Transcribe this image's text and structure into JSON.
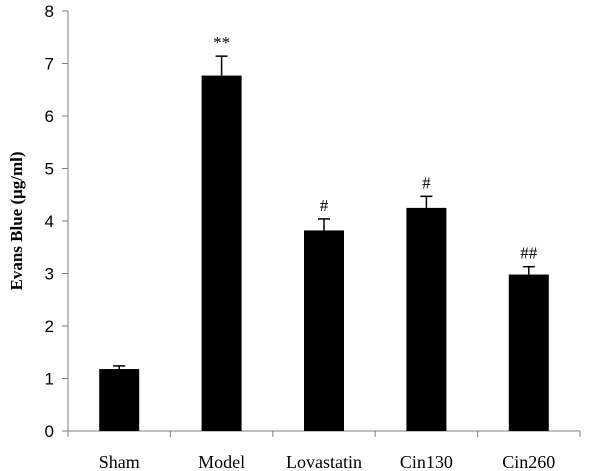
{
  "chart_data": {
    "type": "bar",
    "title": "",
    "xlabel": "",
    "ylabel": "Evans Blue (μg/ml)",
    "ylim": [
      0,
      8
    ],
    "yticks": [
      "0",
      "1",
      "2",
      "3",
      "4",
      "5",
      "6",
      "7",
      "8"
    ],
    "grid": false,
    "legend": "none",
    "bar_color": "#000000",
    "categories": [
      "Sham",
      "Model",
      "Lovastatin",
      "Cin130",
      "Cin260"
    ],
    "values": [
      1.18,
      6.77,
      3.82,
      4.25,
      2.98
    ],
    "error": [
      0.06,
      0.37,
      0.22,
      0.22,
      0.15
    ],
    "annotations": [
      "",
      "**",
      "#",
      "#",
      "##"
    ]
  }
}
